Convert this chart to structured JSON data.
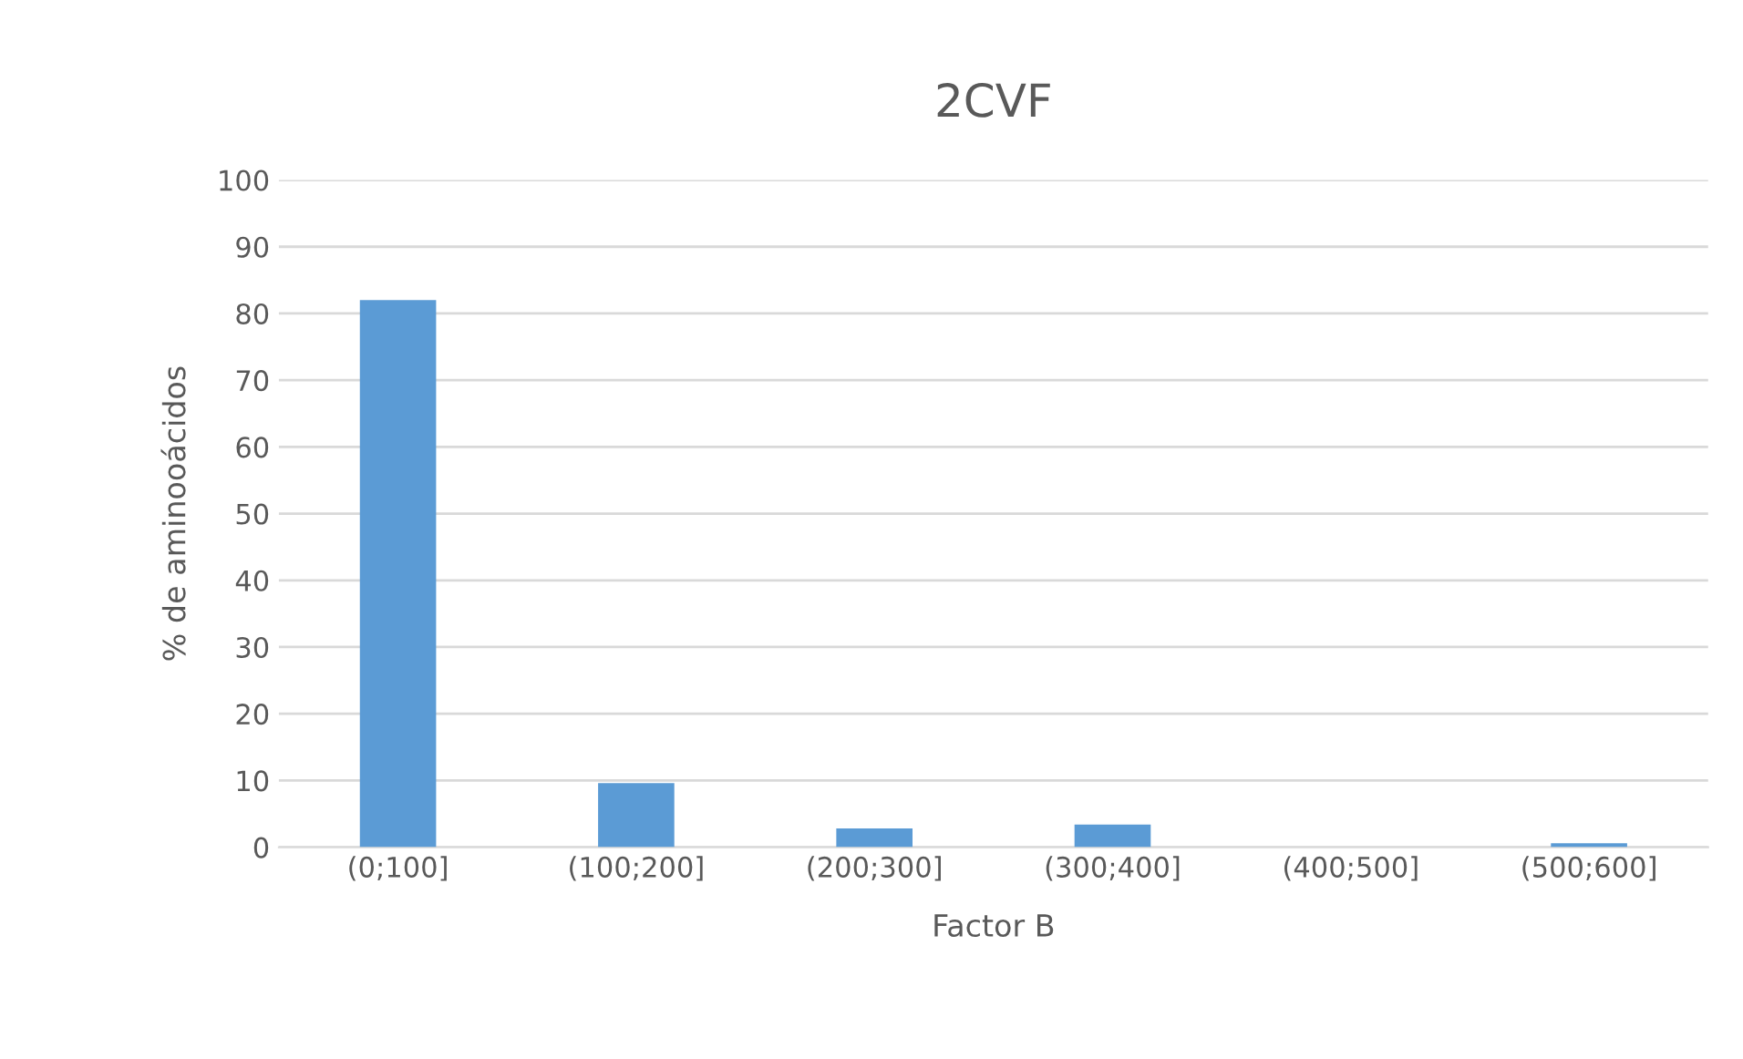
{
  "chart_data": {
    "type": "bar",
    "title": "2CVF",
    "xlabel": "Factor B",
    "ylabel": "% de aminooácidos",
    "categories": [
      "(0;100]",
      "(100;200]",
      "(200;300]",
      "(300;400]",
      "(400;500]",
      "(500;600]"
    ],
    "values": [
      82,
      9.6,
      2.8,
      3.4,
      0,
      0.6
    ],
    "color": "#5b9bd5",
    "ylim": [
      0,
      100
    ],
    "yticks": [
      0,
      10,
      20,
      30,
      40,
      50,
      60,
      70,
      80,
      90,
      100
    ],
    "grid": "y"
  }
}
